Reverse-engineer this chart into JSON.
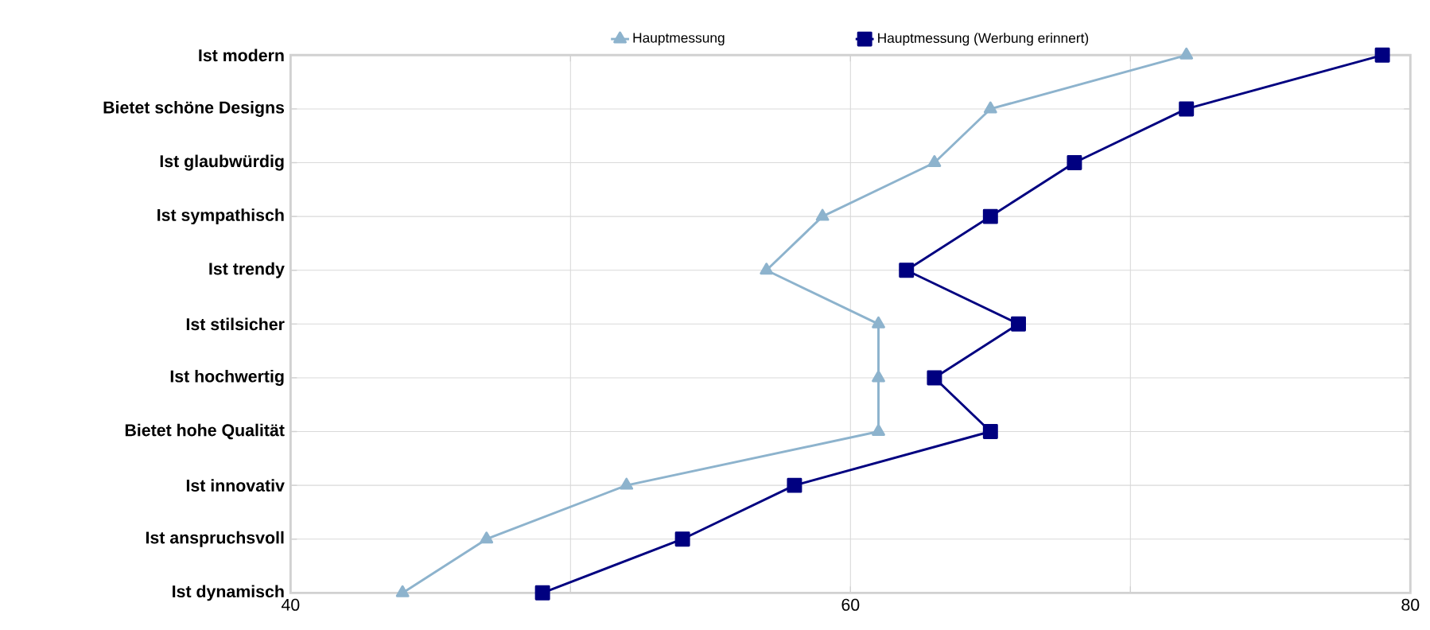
{
  "chart_data": {
    "type": "line",
    "orientation": "horizontal",
    "categories": [
      "Ist modern",
      "Bietet schöne Designs",
      "Ist glaubwürdig",
      "Ist sympathisch",
      "Ist trendy",
      "Ist stilsicher",
      "Ist hochwertig",
      "Bietet hohe Qualität",
      "Ist innovativ",
      "Ist anspruchsvoll",
      "Ist dynamisch"
    ],
    "series": [
      {
        "name": "Hauptmessung",
        "color": "#8db3cd",
        "marker": "triangle",
        "values": [
          72,
          65,
          63,
          59,
          57,
          61,
          61,
          61,
          52,
          47,
          44
        ]
      },
      {
        "name": "Hauptmessung (Werbung erinnert)",
        "color": "#000080",
        "marker": "square",
        "values": [
          79,
          72,
          68,
          65,
          62,
          66,
          63,
          65,
          58,
          54,
          49
        ]
      }
    ],
    "xlim": [
      40,
      80
    ],
    "xticks": [
      40,
      {
        "value": 50,
        "label": null
      },
      60,
      {
        "value": 70,
        "label": null
      },
      80
    ],
    "grid": true,
    "legend": "top",
    "line_style": "solid"
  }
}
